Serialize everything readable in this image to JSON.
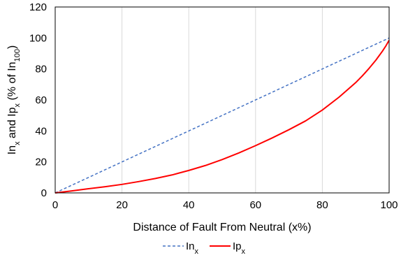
{
  "chart_data": {
    "type": "line",
    "xlabel": "Distance of Fault From Neutral (x%)",
    "ylabel": {
      "parts": [
        {
          "text": "In",
          "sub": false
        },
        {
          "text": "x",
          "sub": true
        },
        {
          "text": " and Ip",
          "sub": false
        },
        {
          "text": "x",
          "sub": true
        },
        {
          "text": " (% of In",
          "sub": false
        },
        {
          "text": "100",
          "sub": true
        },
        {
          "text": ")",
          "sub": false
        }
      ]
    },
    "xlim": [
      0,
      100
    ],
    "ylim": [
      0,
      120
    ],
    "xticks": [
      0,
      20,
      40,
      60,
      80,
      100
    ],
    "yticks": [
      0,
      20,
      40,
      60,
      80,
      100,
      120
    ],
    "grid": {
      "vertical": true,
      "horizontal": false
    },
    "legend_position": "bottom-center",
    "series": [
      {
        "name_parts": [
          {
            "text": "In",
            "sub": false
          },
          {
            "text": "x",
            "sub": true
          }
        ],
        "color": "#4472c4",
        "dashed": true,
        "x": [
          0,
          100
        ],
        "y": [
          0,
          100
        ]
      },
      {
        "name_parts": [
          {
            "text": "Ip",
            "sub": false
          },
          {
            "text": "x",
            "sub": true
          }
        ],
        "color": "#ff0000",
        "dashed": false,
        "x": [
          0,
          5,
          10,
          15,
          20,
          25,
          30,
          35,
          40,
          45,
          50,
          55,
          60,
          65,
          70,
          75,
          80,
          85,
          90,
          92,
          94,
          96,
          98,
          99,
          100
        ],
        "y": [
          0,
          1.3,
          2.7,
          4,
          5.5,
          7.3,
          9.3,
          11.6,
          14.5,
          17.7,
          21.5,
          25.8,
          30.5,
          35.5,
          40.8,
          46.5,
          53.5,
          61.8,
          71.2,
          75.6,
          80.4,
          85.6,
          91.5,
          94.8,
          98.5
        ]
      }
    ]
  }
}
